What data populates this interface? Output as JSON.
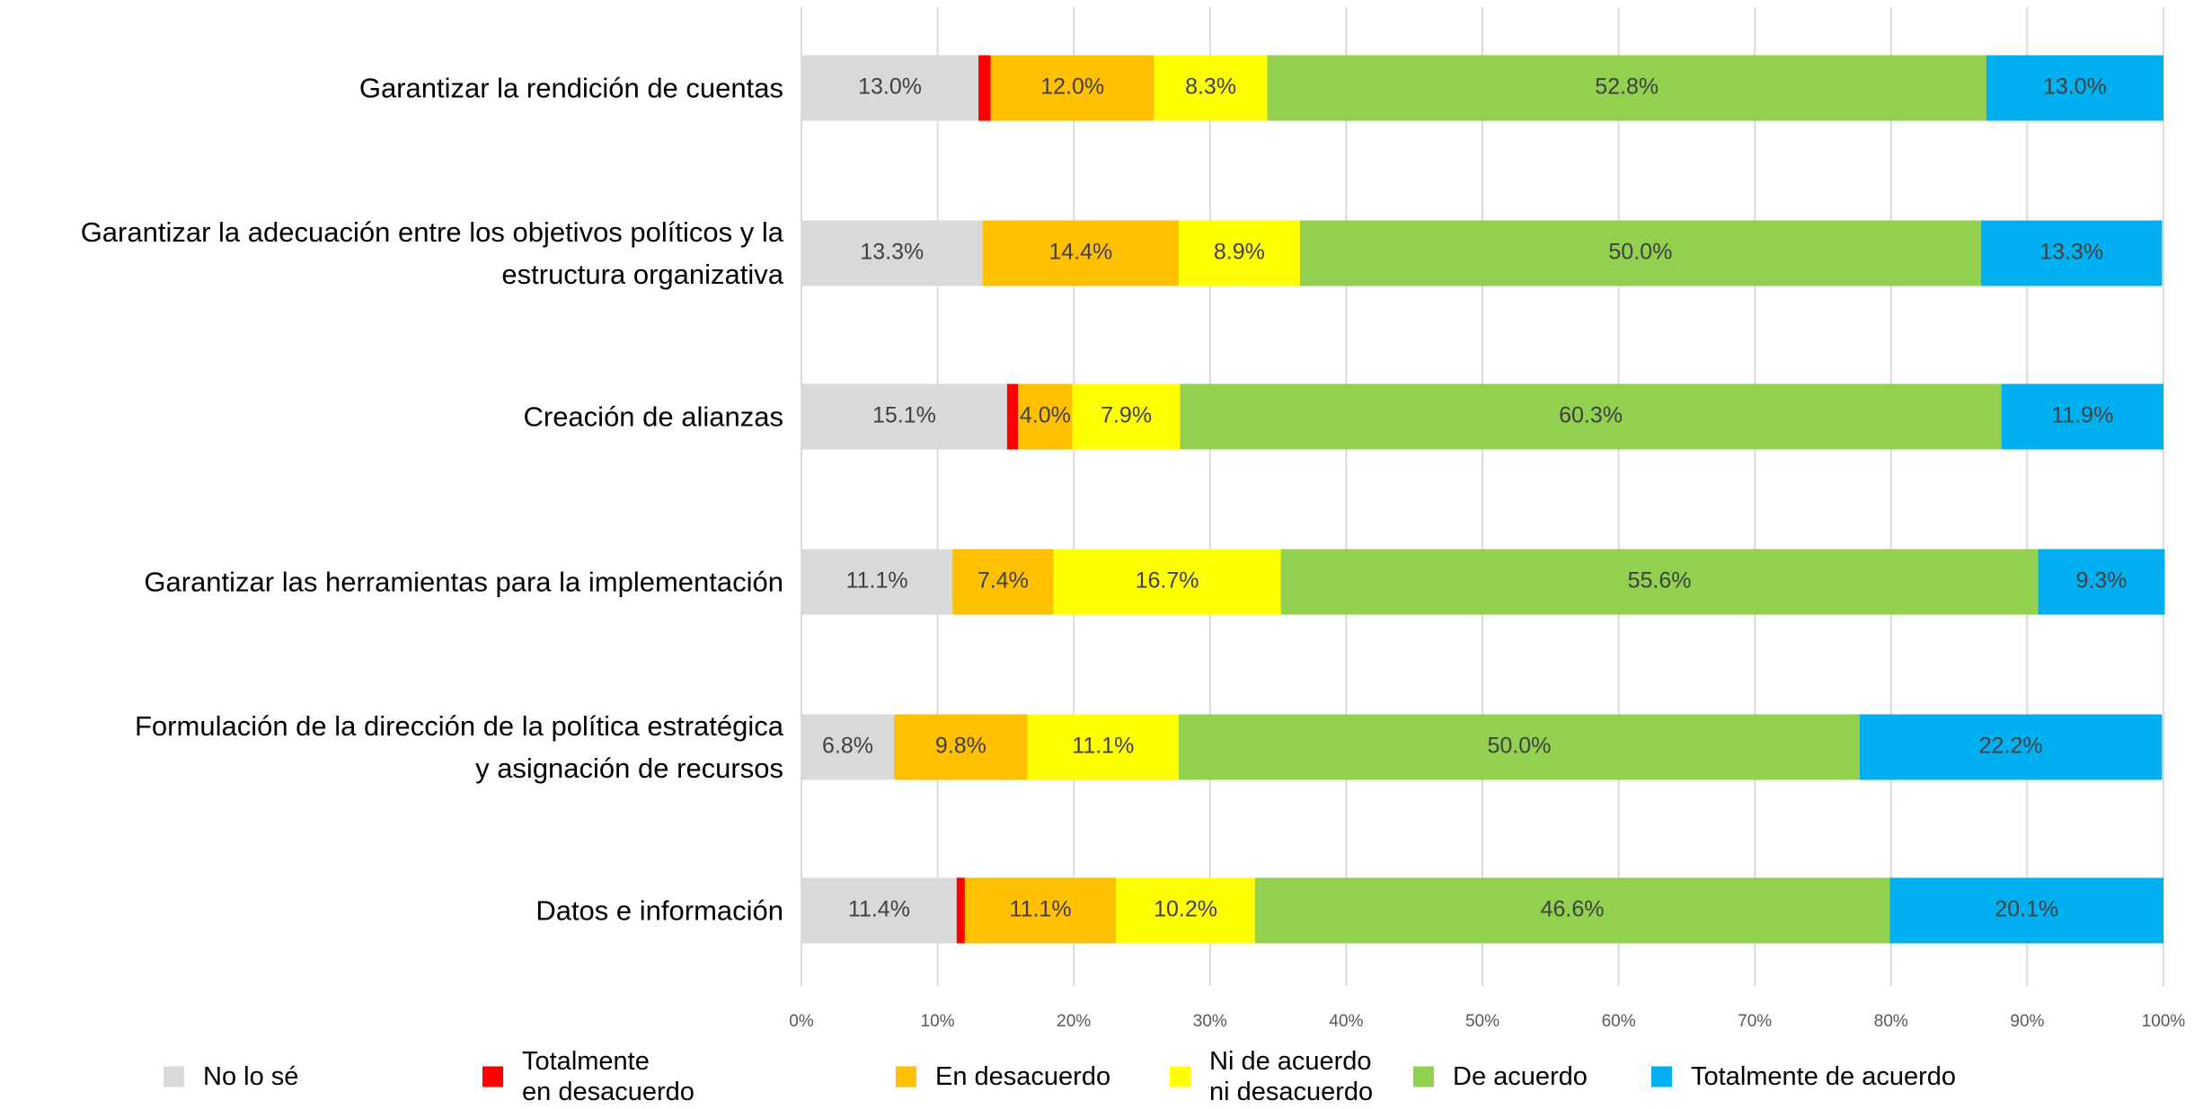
{
  "chart_data": {
    "type": "stacked-barh",
    "categories": [
      "Garantizar la rendición de cuentas",
      "Garantizar la adecuación entre los objetivos políticos y la\nestructura organizativa",
      "Creación de alianzas",
      "Garantizar las herramientas para la implementación",
      "Formulación de la dirección de la política estratégica\ny asignación de recursos",
      "Datos e información"
    ],
    "series": [
      {
        "name": "No lo sé",
        "color": "#d9d9d9",
        "values": [
          13.0,
          13.3,
          15.1,
          11.1,
          6.8,
          11.4
        ],
        "value_labels": [
          "13.0%",
          "13.3%",
          "15.1%",
          "11.1%",
          "6.8%",
          "11.4%"
        ]
      },
      {
        "name": "Totalmente\nen desacuerdo",
        "color": "#ff0000",
        "values": [
          0.9,
          0,
          0.8,
          0,
          0,
          0.6
        ],
        "value_labels": [
          null,
          null,
          null,
          null,
          null,
          null
        ]
      },
      {
        "name": "En desacuerdo",
        "color": "#ffc000",
        "values": [
          12.0,
          14.4,
          4.0,
          7.4,
          9.8,
          11.1
        ],
        "value_labels": [
          "12.0%",
          "14.4%",
          "4.0%",
          "7.4%",
          "9.8%",
          "11.1%"
        ]
      },
      {
        "name": "Ni de acuerdo\nni desacuerdo",
        "color": "#ffff00",
        "values": [
          8.3,
          8.9,
          7.9,
          16.7,
          11.1,
          10.2
        ],
        "value_labels": [
          "8.3%",
          "8.9%",
          "7.9%",
          "16.7%",
          "11.1%",
          "10.2%"
        ]
      },
      {
        "name": "De acuerdo",
        "color": "#92d050",
        "values": [
          52.8,
          50.0,
          60.3,
          55.6,
          50.0,
          46.6
        ],
        "value_labels": [
          "52.8%",
          "50.0%",
          "60.3%",
          "55.6%",
          "50.0%",
          "46.6%"
        ]
      },
      {
        "name": "Totalmente de acuerdo",
        "color": "#00b0f0",
        "values": [
          13.0,
          13.3,
          11.9,
          9.3,
          22.2,
          20.1
        ],
        "value_labels": [
          "13.0%",
          "13.3%",
          "11.9%",
          "9.3%",
          "22.2%",
          "20.1%"
        ]
      }
    ],
    "xlim": [
      0,
      100
    ],
    "xticks": [
      {
        "value": 0,
        "label": "0%"
      },
      {
        "value": 10,
        "label": "10%"
      },
      {
        "value": 20,
        "label": "20%"
      },
      {
        "value": 30,
        "label": "30%"
      },
      {
        "value": 40,
        "label": "40%"
      },
      {
        "value": 50,
        "label": "50%"
      },
      {
        "value": 60,
        "label": "60%"
      },
      {
        "value": 70,
        "label": "70%"
      },
      {
        "value": 80,
        "label": "80%"
      },
      {
        "value": 90,
        "label": "90%"
      },
      {
        "value": 100,
        "label": "100%"
      }
    ],
    "grid": true,
    "legend": "bottom"
  }
}
